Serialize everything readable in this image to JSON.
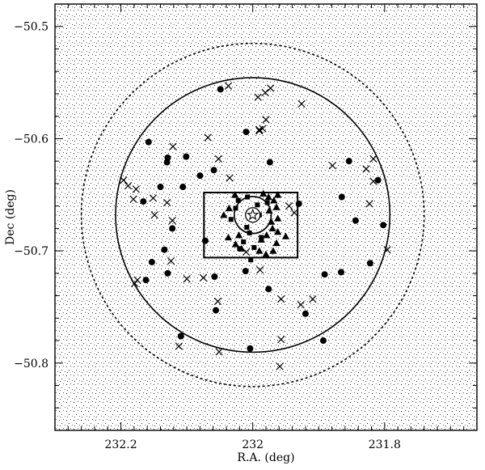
{
  "chart_data": {
    "type": "scatter",
    "xlabel": "R.A. (deg)",
    "ylabel": "Dec (deg)",
    "x_reversed": true,
    "xlim": [
      231.66,
      232.3
    ],
    "ylim": [
      -50.86,
      -50.48
    ],
    "xticks": [
      231.8,
      232,
      232.2
    ],
    "xtick_labels": [
      "231.8",
      "232",
      "232.2"
    ],
    "yticks": [
      -50.5,
      -50.6,
      -50.7,
      -50.8
    ],
    "ytick_labels": [
      "−50.5",
      "−50.6",
      "−50.7",
      "−50.8"
    ],
    "grid": false,
    "center": [
      232.0,
      -50.668
    ],
    "circles": [
      {
        "radius_deg_ra": 0.26,
        "style": "dotted"
      },
      {
        "radius_deg_ra": 0.208,
        "style": "solid"
      },
      {
        "radius_deg_ra": 0.028,
        "style": "solid"
      }
    ],
    "box": {
      "ra_min": 231.932,
      "ra_max": 232.074,
      "dec_min": -50.706,
      "dec_max": -50.648
    },
    "star_marker": [
      232.0,
      -50.668
    ],
    "series": [
      {
        "marker": "filled-circle",
        "points": [
          [
            232.049,
            -50.556
          ],
          [
            232.01,
            -50.594
          ],
          [
            231.974,
            -50.621
          ],
          [
            232.101,
            -50.616
          ],
          [
            231.854,
            -50.62
          ],
          [
            231.81,
            -50.637
          ],
          [
            232.059,
            -50.628
          ],
          [
            232.08,
            -50.633
          ],
          [
            232.158,
            -50.603
          ],
          [
            232.129,
            -50.617
          ],
          [
            232.13,
            -50.621
          ],
          [
            232.14,
            -50.643
          ],
          [
            232.106,
            -50.643
          ],
          [
            231.865,
            -50.652
          ],
          [
            231.93,
            -50.658
          ],
          [
            232.166,
            -50.656
          ],
          [
            231.802,
            -50.677
          ],
          [
            231.844,
            -50.673
          ],
          [
            232.122,
            -50.68
          ],
          [
            232.134,
            -50.699
          ],
          [
            232.072,
            -50.691
          ],
          [
            231.822,
            -50.711
          ],
          [
            232.153,
            -50.71
          ],
          [
            232.162,
            -50.726
          ],
          [
            232.129,
            -50.72
          ],
          [
            231.866,
            -50.719
          ],
          [
            231.891,
            -50.721
          ],
          [
            232.011,
            -50.718
          ],
          [
            232.058,
            -50.723
          ],
          [
            231.976,
            -50.734
          ],
          [
            232.056,
            -50.753
          ],
          [
            231.92,
            -50.756
          ],
          [
            232.109,
            -50.776
          ],
          [
            231.893,
            -50.78
          ],
          [
            232.004,
            -50.787
          ]
        ]
      },
      {
        "marker": "cross",
        "points": [
          [
            231.973,
            -50.555
          ],
          [
            231.981,
            -50.559
          ],
          [
            231.992,
            -50.563
          ],
          [
            232.037,
            -50.553
          ],
          [
            231.98,
            -50.583
          ],
          [
            231.926,
            -50.569
          ],
          [
            231.985,
            -50.591
          ],
          [
            231.99,
            -50.592
          ],
          [
            231.99,
            -50.593
          ],
          [
            232.068,
            -50.599
          ],
          [
            231.828,
            -50.627
          ],
          [
            231.817,
            -50.618
          ],
          [
            231.879,
            -50.624
          ],
          [
            232.052,
            -50.618
          ],
          [
            232.121,
            -50.607
          ],
          [
            232.196,
            -50.637
          ],
          [
            232.189,
            -50.642
          ],
          [
            231.817,
            -50.638
          ],
          [
            232.035,
            -50.635
          ],
          [
            232.151,
            -50.653
          ],
          [
            232.177,
            -50.645
          ],
          [
            232.13,
            -50.657
          ],
          [
            231.823,
            -50.658
          ],
          [
            232.181,
            -50.654
          ],
          [
            231.937,
            -50.666
          ],
          [
            231.945,
            -50.66
          ],
          [
            232.149,
            -50.668
          ],
          [
            232.122,
            -50.673
          ],
          [
            231.796,
            -50.699
          ],
          [
            232.124,
            -50.709
          ],
          [
            231.989,
            -50.717
          ],
          [
            232.01,
            -50.701
          ],
          [
            232.1,
            -50.725
          ],
          [
            232.075,
            -50.724
          ],
          [
            232.179,
            -50.729
          ],
          [
            232.175,
            -50.726
          ],
          [
            231.909,
            -50.743
          ],
          [
            231.927,
            -50.748
          ],
          [
            231.957,
            -50.743
          ],
          [
            232.053,
            -50.745
          ],
          [
            231.957,
            -50.779
          ],
          [
            232.051,
            -50.79
          ],
          [
            232.112,
            -50.785
          ],
          [
            231.959,
            -50.803
          ]
        ]
      },
      {
        "marker": "filled-triangle",
        "points": [
          [
            231.962,
            -50.65
          ],
          [
            231.968,
            -50.655
          ],
          [
            231.976,
            -50.652
          ],
          [
            231.984,
            -50.649
          ],
          [
            231.964,
            -50.661
          ],
          [
            231.975,
            -50.664
          ],
          [
            231.962,
            -50.671
          ],
          [
            231.972,
            -50.674
          ],
          [
            231.962,
            -50.683
          ],
          [
            231.97,
            -50.68
          ],
          [
            231.95,
            -50.687
          ],
          [
            231.964,
            -50.693
          ],
          [
            231.979,
            -50.686
          ],
          [
            231.987,
            -50.69
          ],
          [
            231.99,
            -50.7
          ],
          [
            231.969,
            -50.7
          ],
          [
            231.98,
            -50.703
          ],
          [
            232.027,
            -50.65
          ],
          [
            232.036,
            -50.662
          ],
          [
            232.044,
            -50.668
          ],
          [
            232.021,
            -50.686
          ],
          [
            232.026,
            -50.694
          ],
          [
            232.017,
            -50.698
          ],
          [
            232.037,
            -50.688
          ]
        ]
      },
      {
        "marker": "filled-square",
        "points": [
          [
            231.978,
            -50.657
          ],
          [
            231.993,
            -50.659
          ],
          [
            232.008,
            -50.652
          ],
          [
            232.022,
            -50.655
          ],
          [
            232.026,
            -50.662
          ],
          [
            231.99,
            -50.668
          ],
          [
            232.033,
            -50.672
          ],
          [
            232.009,
            -50.679
          ],
          [
            231.987,
            -50.688
          ],
          [
            232.005,
            -50.684
          ],
          [
            232.014,
            -50.692
          ],
          [
            231.998,
            -50.697
          ],
          [
            232.02,
            -50.698
          ],
          [
            232.003,
            -50.708
          ]
        ]
      }
    ]
  }
}
